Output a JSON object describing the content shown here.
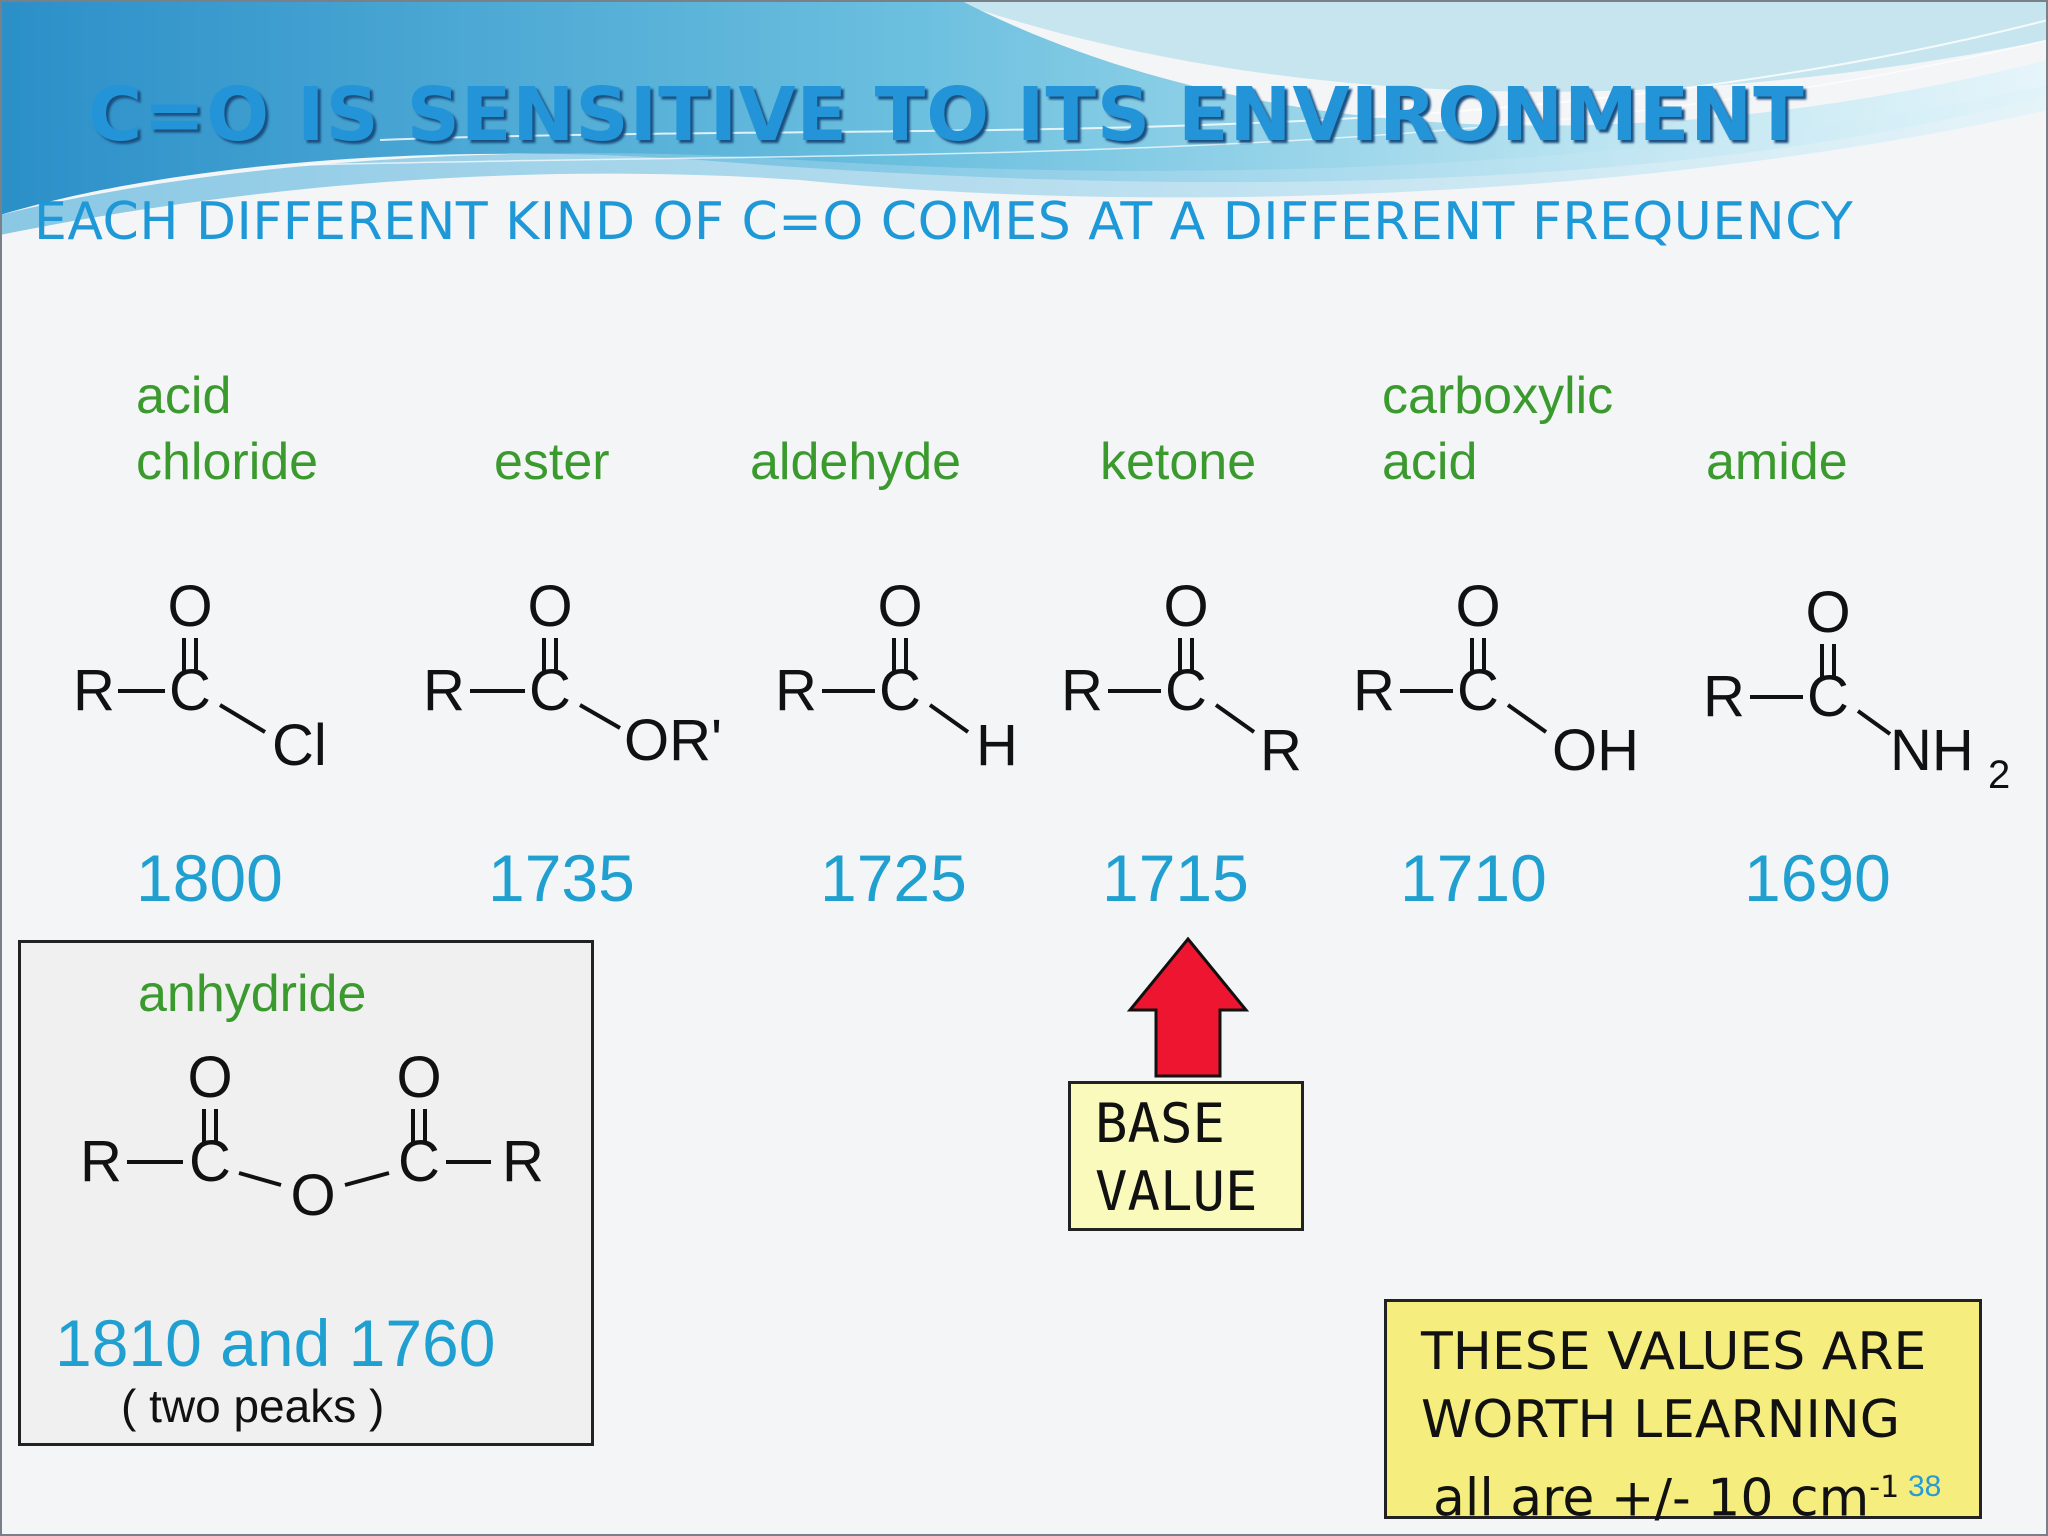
{
  "slide": {
    "title": "C=O IS SENSITIVE TO ITS ENVIRONMENT",
    "subtitle": "EACH DIFFERENT KIND OF C=O COMES AT A DIFFERENT FREQUENCY",
    "page_number": "38"
  },
  "colors": {
    "title": "#2394d8",
    "label_green": "#3b9a2e",
    "frequency_blue": "#1fa0d0",
    "arrow_red": "#ee1530",
    "base_box": "#fbfabd",
    "learn_box": "#f5ee7e"
  },
  "compounds": [
    {
      "label_line1": "acid",
      "label_line2": "chloride",
      "substituent": "Cl",
      "frequency": "1800"
    },
    {
      "label_line1": "",
      "label_line2": "ester",
      "substituent": "OR'",
      "frequency": "1735"
    },
    {
      "label_line1": "",
      "label_line2": "aldehyde",
      "substituent": "H",
      "frequency": "1725"
    },
    {
      "label_line1": "",
      "label_line2": "ketone",
      "substituent": "R",
      "frequency": "1715"
    },
    {
      "label_line1": "carboxylic",
      "label_line2": "acid",
      "substituent": "OH",
      "frequency": "1710"
    },
    {
      "label_line1": "",
      "label_line2": "amide",
      "substituent": "NH",
      "substituent_subscript": "2",
      "frequency": "1690"
    }
  ],
  "atoms": {
    "oxygen": "O",
    "carbon": "C",
    "r_group": "R"
  },
  "anhydride": {
    "label": "anhydride",
    "frequency": "1810 and 1760",
    "note": "( two peaks )"
  },
  "base_value": {
    "line1": "BASE",
    "line2": "VALUE",
    "arrow_icon": "up-arrow-icon"
  },
  "learn_box": {
    "line1": "THESE VALUES ARE",
    "line2": "WORTH LEARNING",
    "line3": "all are +/- 10 cm",
    "superscript": "-1"
  }
}
